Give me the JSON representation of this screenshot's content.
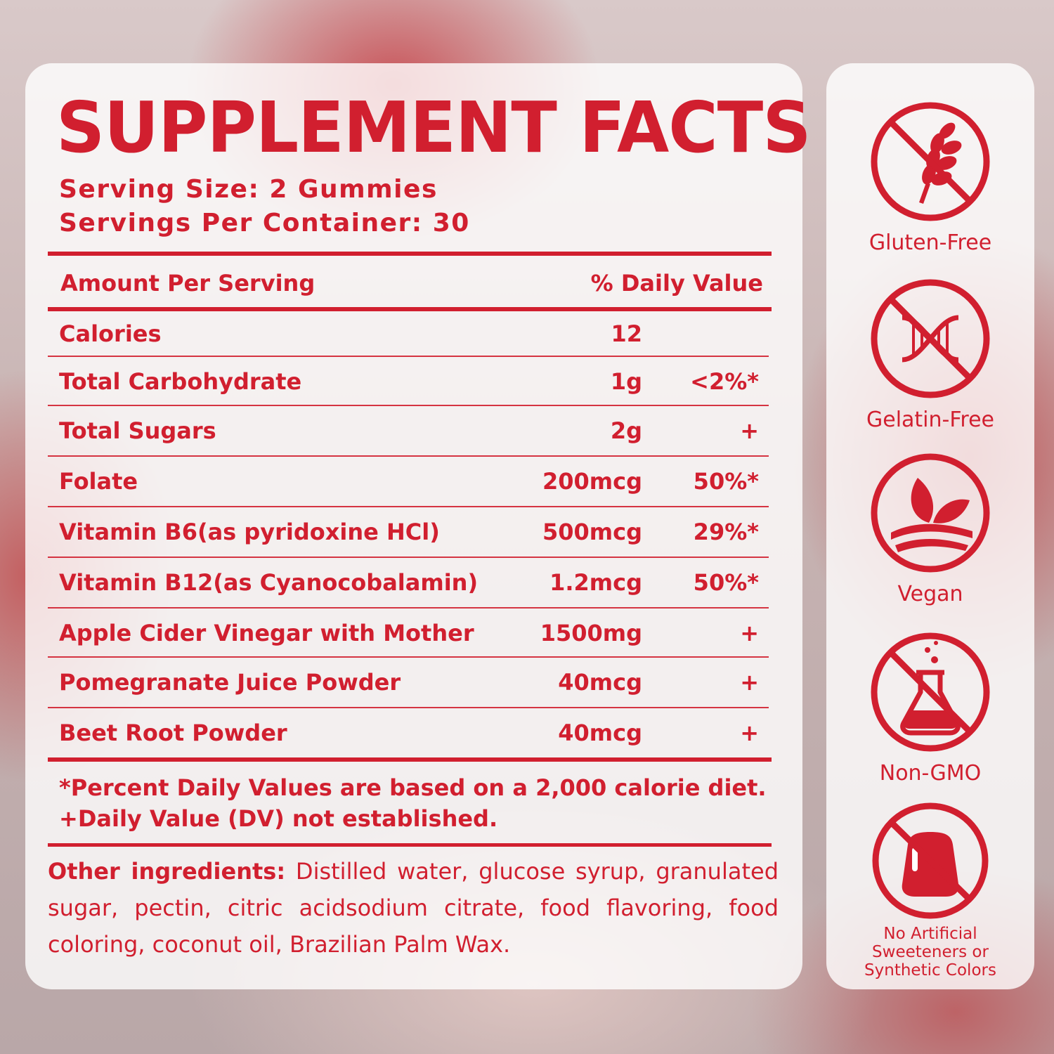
{
  "title": "SUPPLEMENT FACTS",
  "serving_size": "Serving Size: 2 Gummies",
  "servings_per_container": "Servings Per Container: 30",
  "table": {
    "header_amount": "Amount Per Serving",
    "header_dv": "% Daily Value",
    "rows": [
      {
        "name": "Calories",
        "amount": "12",
        "dv": ""
      },
      {
        "name": "Total Carbohydrate",
        "amount": "1g",
        "dv": "<2%*"
      },
      {
        "name": "Total Sugars",
        "amount": "2g",
        "dv": "+"
      },
      {
        "name": "Folate",
        "amount": "200mcg",
        "dv": "50%*"
      },
      {
        "name": "Vitamin B6(as pyridoxine HCl)",
        "amount": "500mcg",
        "dv": "29%*"
      },
      {
        "name": "Vitamin B12(as Cyanocobalamin)",
        "amount": "1.2mcg",
        "dv": "50%*"
      },
      {
        "name": "Apple Cider Vinegar with Mother",
        "amount": "1500mg",
        "dv": "+"
      },
      {
        "name": "Pomegranate Juice Powder",
        "amount": "40mcg",
        "dv": "+"
      },
      {
        "name": "Beet Root Powder",
        "amount": "40mcg",
        "dv": "+"
      }
    ]
  },
  "footnote_1": "*Percent Daily Values are based on a 2,000 calorie diet.",
  "footnote_2": "+Daily Value (DV) not established.",
  "other_ingredients": {
    "label": "Other ingredients:",
    "text": " Distilled water, glucose syrup, granulated sugar, pectin, citric acidsodium citrate, food flavoring, food coloring, coconut oil, Brazilian Palm Wax."
  },
  "badges": [
    {
      "label": "Gluten-Free",
      "icon": "no-wheat-icon"
    },
    {
      "label": "Gelatin-Free",
      "icon": "no-dna-icon"
    },
    {
      "label": "Vegan",
      "icon": "leaf-icon"
    },
    {
      "label": "Non-GMO",
      "icon": "no-flask-icon"
    },
    {
      "label": "No Artificial Sweeteners or Synthetic Colors",
      "icon": "no-gummy-icon"
    }
  ],
  "colors": {
    "accent": "#d11f2f"
  }
}
